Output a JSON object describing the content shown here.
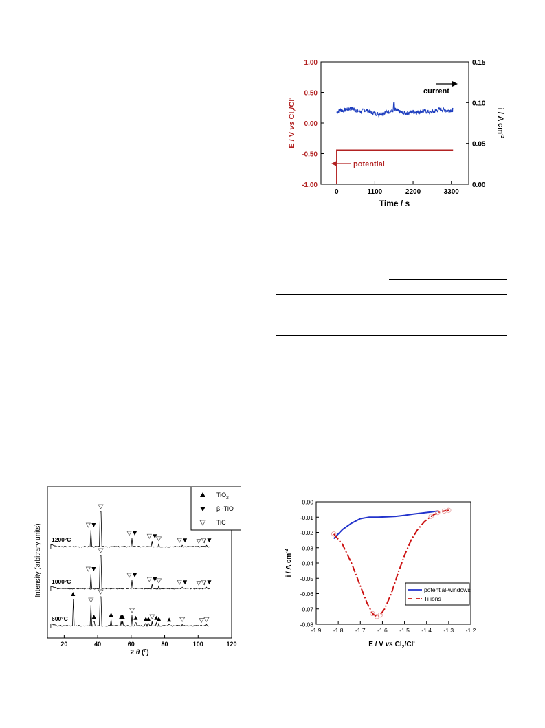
{
  "chart_data": [
    {
      "type": "line",
      "title": "",
      "xlabel": "Time / s",
      "ylabel_left": "E / V  vs Cl2/Cl-",
      "ylabel_right": "i / A cm-2",
      "x_ticks": [
        "0",
        "1100",
        "2200",
        "3300"
      ],
      "y_left_ticks": [
        "1.00",
        "0.50",
        "0.00",
        "-0.50",
        "-1.00"
      ],
      "y_right_ticks": [
        "0.15",
        "0.10",
        "0.05",
        "0.00"
      ],
      "xlim": [
        -450,
        3800
      ],
      "ylim_left": [
        -1.0,
        1.0
      ],
      "ylim_right": [
        0.0,
        0.15
      ],
      "annotations": {
        "current_label": "current",
        "potential_label": "potential"
      },
      "colors": {
        "potential": "#b22222",
        "current": "#1f3fbf",
        "left_axis": "#b22222"
      },
      "series": [
        {
          "name": "potential",
          "axis": "left",
          "x": [
            0,
            0,
            3350
          ],
          "y": [
            -1.0,
            -0.44,
            -0.44
          ]
        },
        {
          "name": "current",
          "axis": "right",
          "x": [
            0,
            100,
            200,
            300,
            400,
            500,
            600,
            700,
            800,
            900,
            1000,
            1100,
            1200,
            1300,
            1400,
            1500,
            1600,
            1700,
            1800,
            1900,
            2000,
            2100,
            2200,
            2300,
            2400,
            2500,
            2600,
            2700,
            2800,
            2900,
            3000,
            3100,
            3200,
            3300,
            3350
          ],
          "y": [
            0.088,
            0.091,
            0.09,
            0.092,
            0.093,
            0.092,
            0.09,
            0.089,
            0.091,
            0.09,
            0.088,
            0.087,
            0.086,
            0.087,
            0.088,
            0.089,
            0.09,
            0.091,
            0.089,
            0.087,
            0.087,
            0.088,
            0.089,
            0.088,
            0.089,
            0.09,
            0.089,
            0.088,
            0.089,
            0.091,
            0.092,
            0.091,
            0.09,
            0.091,
            0.091
          ]
        }
      ]
    },
    {
      "type": "line",
      "title": "",
      "xlabel": "2 θ (0)",
      "ylabel": "Intensity (arbitrary units)",
      "x_ticks": [
        "20",
        "40",
        "60",
        "80",
        "100",
        "120"
      ],
      "xlim": [
        10,
        120
      ],
      "legend": {
        "position": "top-right",
        "entries": [
          {
            "label": "TiO",
            "sub": "2",
            "marker": "filled-up-triangle"
          },
          {
            "label": "β -TiO",
            "sub": "",
            "marker": "filled-down-triangle"
          },
          {
            "label": "TiC",
            "sub": "",
            "marker": "open-down-triangle"
          }
        ]
      },
      "series": [
        {
          "name": "1200°C",
          "peaks": [
            [
              36,
              0.45
            ],
            [
              41.8,
              0.9
            ],
            [
              60.5,
              0.25
            ],
            [
              72.5,
              0.18
            ],
            [
              76.5,
              0.12
            ],
            [
              90.5,
              0.08
            ],
            [
              102,
              0.06
            ],
            [
              105,
              0.08
            ]
          ]
        },
        {
          "name": "1000°C",
          "peaks": [
            [
              36,
              0.4
            ],
            [
              41.8,
              0.85
            ],
            [
              60.5,
              0.25
            ],
            [
              72.5,
              0.15
            ],
            [
              76.5,
              0.12
            ],
            [
              90.5,
              0.08
            ],
            [
              102,
              0.06
            ],
            [
              105,
              0.08
            ]
          ]
        },
        {
          "name": "600°C",
          "peaks": [
            [
              25.3,
              0.7
            ],
            [
              36,
              0.55
            ],
            [
              37.8,
              0.15
            ],
            [
              41.8,
              0.75
            ],
            [
              48,
              0.2
            ],
            [
              54,
              0.15
            ],
            [
              55,
              0.15
            ],
            [
              60.5,
              0.3
            ],
            [
              62.7,
              0.12
            ],
            [
              68.8,
              0.1
            ],
            [
              70.3,
              0.1
            ],
            [
              72.5,
              0.15
            ],
            [
              75,
              0.12
            ],
            [
              76.5,
              0.1
            ],
            [
              82.7,
              0.08
            ],
            [
              90.5,
              0.08
            ],
            [
              102,
              0.06
            ],
            [
              105,
              0.08
            ]
          ]
        }
      ]
    },
    {
      "type": "line",
      "title": "",
      "xlabel": "E / V    vs Cl2/Cl-",
      "ylabel": "i / A cm-2",
      "x_ticks": [
        "-1.9",
        "-1.8",
        "-1.7",
        "-1.6",
        "-1.5",
        "-1.4",
        "-1.3",
        "-1.2"
      ],
      "y_ticks": [
        "0.00",
        "-0.01",
        "-0.02",
        "-0.03",
        "-0.04",
        "-0.05",
        "-0.06",
        "-0.07",
        "-0.08"
      ],
      "xlim": [
        -1.9,
        -1.2
      ],
      "ylim": [
        -0.08,
        0.0
      ],
      "legend": {
        "position": "lower-right"
      },
      "colors": {
        "potential-windows": "#2233cc",
        "Ti ions": "#cc1111"
      },
      "series": [
        {
          "name": "potential-windows",
          "x": [
            -1.82,
            -1.78,
            -1.74,
            -1.7,
            -1.66,
            -1.62,
            -1.58,
            -1.54,
            -1.5,
            -1.46,
            -1.42,
            -1.38,
            -1.35
          ],
          "y": [
            -0.024,
            -0.018,
            -0.014,
            -0.011,
            -0.01,
            -0.01,
            -0.0098,
            -0.0095,
            -0.0088,
            -0.008,
            -0.0073,
            -0.0066,
            -0.006
          ]
        },
        {
          "name": "Ti ions",
          "x": [
            -1.82,
            -1.78,
            -1.74,
            -1.7,
            -1.67,
            -1.645,
            -1.625,
            -1.61,
            -1.59,
            -1.56,
            -1.53,
            -1.5,
            -1.47,
            -1.44,
            -1.41,
            -1.38,
            -1.35,
            -1.32,
            -1.3
          ],
          "y": [
            -0.021,
            -0.028,
            -0.04,
            -0.055,
            -0.066,
            -0.073,
            -0.075,
            -0.074,
            -0.07,
            -0.06,
            -0.047,
            -0.035,
            -0.025,
            -0.018,
            -0.013,
            -0.0095,
            -0.007,
            -0.006,
            -0.0055
          ]
        }
      ]
    }
  ]
}
